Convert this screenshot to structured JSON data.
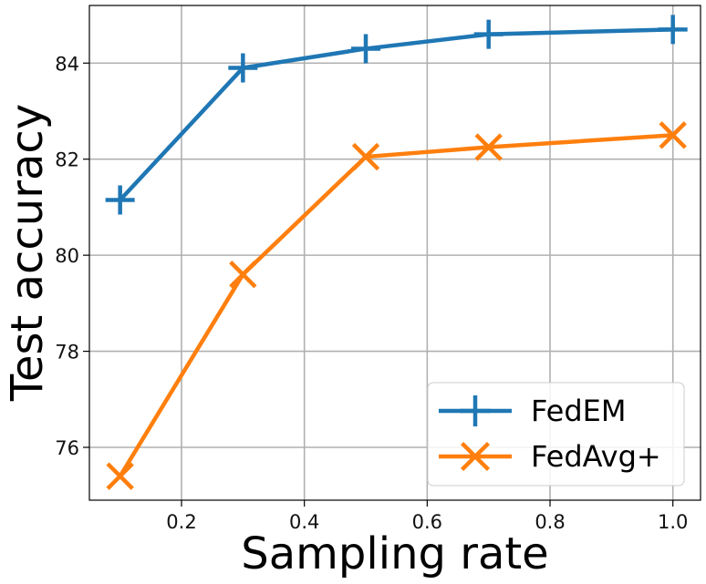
{
  "chart_data": {
    "type": "line",
    "title": "",
    "xlabel": "Sampling rate",
    "ylabel": "Test accuracy",
    "x": [
      0.1,
      0.3,
      0.5,
      0.7,
      1.0
    ],
    "xlim": [
      0.05,
      1.045
    ],
    "ylim": [
      74.9,
      85.2
    ],
    "xticks": [
      0.2,
      0.4,
      0.6,
      0.8,
      1.0
    ],
    "xtick_labels": [
      "0.2",
      "0.4",
      "0.6",
      "0.8",
      "1.0"
    ],
    "yticks": [
      76,
      78,
      80,
      82,
      84
    ],
    "ytick_labels": [
      "76",
      "78",
      "80",
      "82",
      "84"
    ],
    "grid": true,
    "legend_position": "bottom-right",
    "series": [
      {
        "name": "FedEM",
        "marker": "plus",
        "color": "#1f77b4",
        "values": [
          81.15,
          83.9,
          84.3,
          84.6,
          84.7
        ]
      },
      {
        "name": "FedAvg+",
        "marker": "x",
        "color": "#ff7f0e",
        "values": [
          75.4,
          79.6,
          82.05,
          82.25,
          82.5
        ]
      }
    ]
  }
}
